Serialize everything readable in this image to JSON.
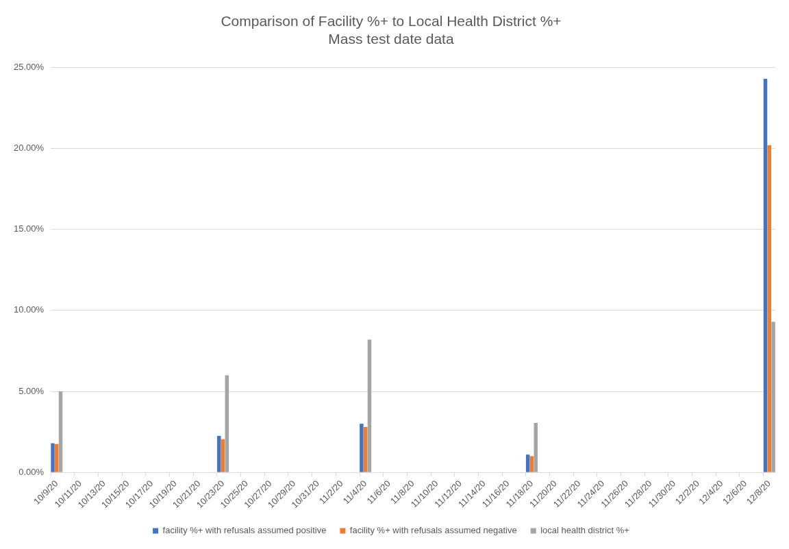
{
  "chart_data": {
    "type": "bar",
    "title": "Comparison of Facility %+ to Local Health District %+",
    "subtitle": "Mass test date data",
    "categories": [
      "10/9/20",
      null,
      "10/11/20",
      null,
      "10/13/20",
      null,
      "10/15/20",
      null,
      "10/17/20",
      null,
      "10/19/20",
      null,
      "10/21/20",
      null,
      "10/23/20",
      null,
      "10/25/20",
      null,
      "10/27/20",
      null,
      "10/29/20",
      null,
      "10/31/20",
      null,
      "11/2/20",
      null,
      "11/4/20",
      null,
      "11/6/20",
      null,
      "11/8/20",
      null,
      "11/10/20",
      null,
      "11/12/20",
      null,
      "11/14/20",
      null,
      "11/16/20",
      null,
      "11/18/20",
      null,
      "11/20/20",
      null,
      "11/22/20",
      null,
      "11/24/20",
      null,
      "11/26/20",
      null,
      "11/28/20",
      null,
      "11/30/20",
      null,
      "12/2/20",
      null,
      "12/4/20",
      null,
      "12/6/20",
      null,
      "12/8/20"
    ],
    "series": [
      {
        "name": "facility %+ with refusals assumed positive",
        "color": "#4472c4",
        "values": [
          1.8,
          null,
          null,
          null,
          null,
          null,
          null,
          null,
          null,
          null,
          null,
          null,
          null,
          null,
          2.25,
          null,
          null,
          null,
          null,
          null,
          null,
          null,
          null,
          null,
          null,
          null,
          3.0,
          null,
          null,
          null,
          null,
          null,
          null,
          null,
          null,
          null,
          null,
          null,
          null,
          null,
          1.1,
          null,
          null,
          null,
          null,
          null,
          null,
          null,
          null,
          null,
          null,
          null,
          null,
          null,
          null,
          null,
          null,
          null,
          null,
          null,
          24.3
        ]
      },
      {
        "name": "facility %+ with refusals assumed negative",
        "color": "#ed7d31",
        "values": [
          1.75,
          null,
          null,
          null,
          null,
          null,
          null,
          null,
          null,
          null,
          null,
          null,
          null,
          null,
          2.05,
          null,
          null,
          null,
          null,
          null,
          null,
          null,
          null,
          null,
          null,
          null,
          2.8,
          null,
          null,
          null,
          null,
          null,
          null,
          null,
          null,
          null,
          null,
          null,
          null,
          null,
          1.0,
          null,
          null,
          null,
          null,
          null,
          null,
          null,
          null,
          null,
          null,
          null,
          null,
          null,
          null,
          null,
          null,
          null,
          null,
          null,
          20.2
        ]
      },
      {
        "name": "local health district %+",
        "color": "#a5a5a5",
        "values": [
          5.0,
          null,
          null,
          null,
          null,
          null,
          null,
          null,
          null,
          null,
          null,
          null,
          null,
          null,
          6.0,
          null,
          null,
          null,
          null,
          null,
          null,
          null,
          null,
          null,
          null,
          null,
          8.2,
          null,
          null,
          null,
          null,
          null,
          null,
          null,
          null,
          null,
          null,
          null,
          null,
          null,
          3.05,
          null,
          null,
          null,
          null,
          null,
          null,
          null,
          null,
          null,
          null,
          null,
          null,
          null,
          null,
          null,
          null,
          null,
          null,
          null,
          9.3
        ]
      }
    ],
    "ylim": [
      0,
      25
    ],
    "yticks": [
      {
        "value": 0,
        "label": "0.00%"
      },
      {
        "value": 5,
        "label": "5.00%"
      },
      {
        "value": 10,
        "label": "10.00%"
      },
      {
        "value": 15,
        "label": "15.00%"
      },
      {
        "value": 20,
        "label": "20.00%"
      },
      {
        "value": 25,
        "label": "25.00%"
      }
    ],
    "grid": "y",
    "legend": "bottom"
  }
}
